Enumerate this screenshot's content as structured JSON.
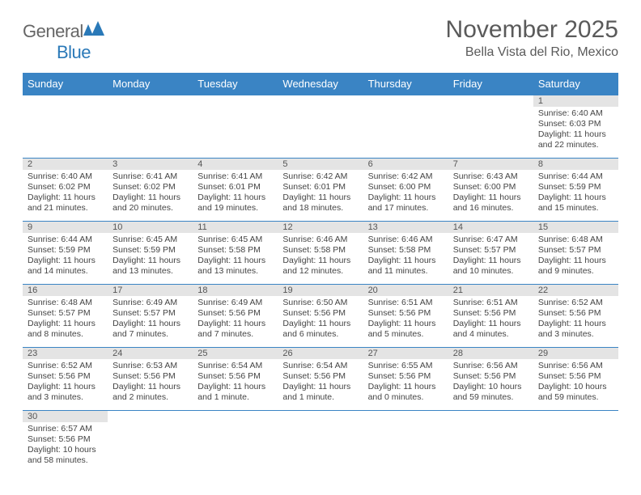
{
  "logo": {
    "part1": "General",
    "part2": "Blue"
  },
  "title": "November 2025",
  "subtitle": "Bella Vista del Rio, Mexico",
  "colors": {
    "header_bg": "#3a84c4",
    "header_text": "#ffffff",
    "daynum_bg": "#e4e4e4",
    "text": "#444444",
    "title_color": "#5a5a5a",
    "border": "#3a84c4"
  },
  "weekdays": [
    "Sunday",
    "Monday",
    "Tuesday",
    "Wednesday",
    "Thursday",
    "Friday",
    "Saturday"
  ],
  "weeks": [
    [
      null,
      null,
      null,
      null,
      null,
      null,
      {
        "n": "1",
        "sr": "Sunrise: 6:40 AM",
        "ss": "Sunset: 6:03 PM",
        "dl": "Daylight: 11 hours and 22 minutes."
      }
    ],
    [
      {
        "n": "2",
        "sr": "Sunrise: 6:40 AM",
        "ss": "Sunset: 6:02 PM",
        "dl": "Daylight: 11 hours and 21 minutes."
      },
      {
        "n": "3",
        "sr": "Sunrise: 6:41 AM",
        "ss": "Sunset: 6:02 PM",
        "dl": "Daylight: 11 hours and 20 minutes."
      },
      {
        "n": "4",
        "sr": "Sunrise: 6:41 AM",
        "ss": "Sunset: 6:01 PM",
        "dl": "Daylight: 11 hours and 19 minutes."
      },
      {
        "n": "5",
        "sr": "Sunrise: 6:42 AM",
        "ss": "Sunset: 6:01 PM",
        "dl": "Daylight: 11 hours and 18 minutes."
      },
      {
        "n": "6",
        "sr": "Sunrise: 6:42 AM",
        "ss": "Sunset: 6:00 PM",
        "dl": "Daylight: 11 hours and 17 minutes."
      },
      {
        "n": "7",
        "sr": "Sunrise: 6:43 AM",
        "ss": "Sunset: 6:00 PM",
        "dl": "Daylight: 11 hours and 16 minutes."
      },
      {
        "n": "8",
        "sr": "Sunrise: 6:44 AM",
        "ss": "Sunset: 5:59 PM",
        "dl": "Daylight: 11 hours and 15 minutes."
      }
    ],
    [
      {
        "n": "9",
        "sr": "Sunrise: 6:44 AM",
        "ss": "Sunset: 5:59 PM",
        "dl": "Daylight: 11 hours and 14 minutes."
      },
      {
        "n": "10",
        "sr": "Sunrise: 6:45 AM",
        "ss": "Sunset: 5:59 PM",
        "dl": "Daylight: 11 hours and 13 minutes."
      },
      {
        "n": "11",
        "sr": "Sunrise: 6:45 AM",
        "ss": "Sunset: 5:58 PM",
        "dl": "Daylight: 11 hours and 13 minutes."
      },
      {
        "n": "12",
        "sr": "Sunrise: 6:46 AM",
        "ss": "Sunset: 5:58 PM",
        "dl": "Daylight: 11 hours and 12 minutes."
      },
      {
        "n": "13",
        "sr": "Sunrise: 6:46 AM",
        "ss": "Sunset: 5:58 PM",
        "dl": "Daylight: 11 hours and 11 minutes."
      },
      {
        "n": "14",
        "sr": "Sunrise: 6:47 AM",
        "ss": "Sunset: 5:57 PM",
        "dl": "Daylight: 11 hours and 10 minutes."
      },
      {
        "n": "15",
        "sr": "Sunrise: 6:48 AM",
        "ss": "Sunset: 5:57 PM",
        "dl": "Daylight: 11 hours and 9 minutes."
      }
    ],
    [
      {
        "n": "16",
        "sr": "Sunrise: 6:48 AM",
        "ss": "Sunset: 5:57 PM",
        "dl": "Daylight: 11 hours and 8 minutes."
      },
      {
        "n": "17",
        "sr": "Sunrise: 6:49 AM",
        "ss": "Sunset: 5:57 PM",
        "dl": "Daylight: 11 hours and 7 minutes."
      },
      {
        "n": "18",
        "sr": "Sunrise: 6:49 AM",
        "ss": "Sunset: 5:56 PM",
        "dl": "Daylight: 11 hours and 7 minutes."
      },
      {
        "n": "19",
        "sr": "Sunrise: 6:50 AM",
        "ss": "Sunset: 5:56 PM",
        "dl": "Daylight: 11 hours and 6 minutes."
      },
      {
        "n": "20",
        "sr": "Sunrise: 6:51 AM",
        "ss": "Sunset: 5:56 PM",
        "dl": "Daylight: 11 hours and 5 minutes."
      },
      {
        "n": "21",
        "sr": "Sunrise: 6:51 AM",
        "ss": "Sunset: 5:56 PM",
        "dl": "Daylight: 11 hours and 4 minutes."
      },
      {
        "n": "22",
        "sr": "Sunrise: 6:52 AM",
        "ss": "Sunset: 5:56 PM",
        "dl": "Daylight: 11 hours and 3 minutes."
      }
    ],
    [
      {
        "n": "23",
        "sr": "Sunrise: 6:52 AM",
        "ss": "Sunset: 5:56 PM",
        "dl": "Daylight: 11 hours and 3 minutes."
      },
      {
        "n": "24",
        "sr": "Sunrise: 6:53 AM",
        "ss": "Sunset: 5:56 PM",
        "dl": "Daylight: 11 hours and 2 minutes."
      },
      {
        "n": "25",
        "sr": "Sunrise: 6:54 AM",
        "ss": "Sunset: 5:56 PM",
        "dl": "Daylight: 11 hours and 1 minute."
      },
      {
        "n": "26",
        "sr": "Sunrise: 6:54 AM",
        "ss": "Sunset: 5:56 PM",
        "dl": "Daylight: 11 hours and 1 minute."
      },
      {
        "n": "27",
        "sr": "Sunrise: 6:55 AM",
        "ss": "Sunset: 5:56 PM",
        "dl": "Daylight: 11 hours and 0 minutes."
      },
      {
        "n": "28",
        "sr": "Sunrise: 6:56 AM",
        "ss": "Sunset: 5:56 PM",
        "dl": "Daylight: 10 hours and 59 minutes."
      },
      {
        "n": "29",
        "sr": "Sunrise: 6:56 AM",
        "ss": "Sunset: 5:56 PM",
        "dl": "Daylight: 10 hours and 59 minutes."
      }
    ],
    [
      {
        "n": "30",
        "sr": "Sunrise: 6:57 AM",
        "ss": "Sunset: 5:56 PM",
        "dl": "Daylight: 10 hours and 58 minutes."
      },
      null,
      null,
      null,
      null,
      null,
      null
    ]
  ]
}
